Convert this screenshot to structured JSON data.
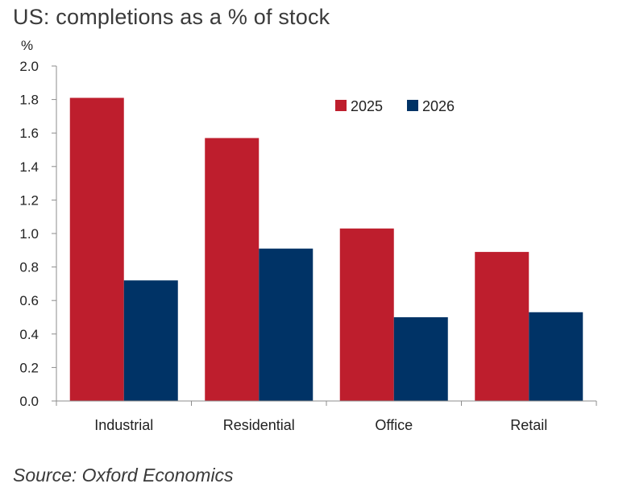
{
  "chart_data": {
    "type": "bar",
    "title": "US: completions as a % of stock",
    "ylabel": "%",
    "xlabel": "",
    "categories": [
      "Industrial",
      "Residential",
      "Office",
      "Retail"
    ],
    "series": [
      {
        "name": "2025",
        "color": "#be1e2d",
        "values": [
          1.81,
          1.57,
          1.03,
          0.89
        ]
      },
      {
        "name": "2026",
        "color": "#003366",
        "values": [
          0.72,
          0.91,
          0.5,
          0.53
        ]
      }
    ],
    "ylim": [
      0,
      2.0
    ],
    "yticks": [
      "0.0",
      "0.2",
      "0.4",
      "0.6",
      "0.8",
      "1.0",
      "1.2",
      "1.4",
      "1.6",
      "1.8",
      "2.0"
    ],
    "grid": false,
    "legend_position": "top-right",
    "source": "Source: Oxford Economics"
  }
}
